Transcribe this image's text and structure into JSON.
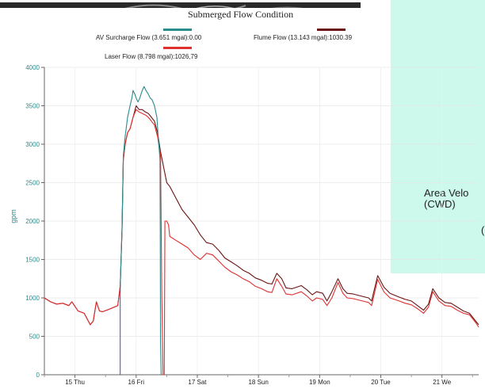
{
  "chart_data": {
    "type": "line",
    "title": "Submerged Flow Condition",
    "ylabel": "gpm",
    "ylim": [
      0,
      4000
    ],
    "yticks": [
      0,
      500,
      1000,
      1500,
      2000,
      2500,
      3000,
      3500,
      4000
    ],
    "xlim": [
      0,
      7.1
    ],
    "xticks": [
      {
        "x": 0.5,
        "label": "15 Thu"
      },
      {
        "x": 1.5,
        "label": "16 Fri"
      },
      {
        "x": 2.5,
        "label": "17 Sat"
      },
      {
        "x": 3.5,
        "label": "18 Sun"
      },
      {
        "x": 4.5,
        "label": "19 Mon"
      },
      {
        "x": 5.5,
        "label": "20 Tue"
      },
      {
        "x": 6.5,
        "label": "21 We"
      }
    ],
    "legend": [
      {
        "label": "AV Surcharge Flow (3.651 mgal):0.00",
        "color": "#2a8c8c"
      },
      {
        "label": "Flume Flow (13.143 mgal):1030.39",
        "color": "#6b1414"
      },
      {
        "label": "Laser Flow (8.798 mgal):1026,79",
        "color": "#e03030"
      }
    ],
    "series": [
      {
        "name": "Flume Flow (13.143 mgal):1030.39",
        "color": "#6b1414",
        "points": [
          [
            0,
            1000
          ],
          [
            0.1,
            950
          ],
          [
            0.2,
            920
          ],
          [
            0.3,
            930
          ],
          [
            0.4,
            900
          ],
          [
            0.45,
            950
          ],
          [
            0.55,
            830
          ],
          [
            0.65,
            800
          ],
          [
            0.75,
            650
          ],
          [
            0.8,
            700
          ],
          [
            0.85,
            950
          ],
          [
            0.9,
            830
          ],
          [
            0.95,
            820
          ],
          [
            1.05,
            850
          ],
          [
            1.2,
            900
          ],
          [
            1.24,
            1150
          ],
          [
            1.27,
            1900
          ],
          [
            1.29,
            2800
          ],
          [
            1.32,
            3000
          ],
          [
            1.36,
            3150
          ],
          [
            1.4,
            3200
          ],
          [
            1.45,
            3350
          ],
          [
            1.5,
            3500
          ],
          [
            1.55,
            3450
          ],
          [
            1.6,
            3450
          ],
          [
            1.65,
            3420
          ],
          [
            1.7,
            3400
          ],
          [
            1.75,
            3350
          ],
          [
            1.8,
            3300
          ],
          [
            1.85,
            3150
          ],
          [
            1.9,
            2900
          ],
          [
            1.95,
            2700
          ],
          [
            2.0,
            2500
          ],
          [
            2.05,
            2450
          ],
          [
            2.15,
            2300
          ],
          [
            2.25,
            2150
          ],
          [
            2.35,
            2050
          ],
          [
            2.45,
            1950
          ],
          [
            2.55,
            1820
          ],
          [
            2.65,
            1720
          ],
          [
            2.75,
            1700
          ],
          [
            2.85,
            1620
          ],
          [
            2.95,
            1520
          ],
          [
            3.05,
            1470
          ],
          [
            3.15,
            1420
          ],
          [
            3.25,
            1360
          ],
          [
            3.35,
            1320
          ],
          [
            3.45,
            1260
          ],
          [
            3.55,
            1230
          ],
          [
            3.65,
            1190
          ],
          [
            3.72,
            1180
          ],
          [
            3.8,
            1320
          ],
          [
            3.88,
            1250
          ],
          [
            3.95,
            1130
          ],
          [
            4.05,
            1120
          ],
          [
            4.2,
            1160
          ],
          [
            4.3,
            1100
          ],
          [
            4.38,
            1040
          ],
          [
            4.45,
            1080
          ],
          [
            4.55,
            1060
          ],
          [
            4.62,
            960
          ],
          [
            4.7,
            1080
          ],
          [
            4.8,
            1250
          ],
          [
            4.88,
            1120
          ],
          [
            4.95,
            1060
          ],
          [
            5.05,
            1050
          ],
          [
            5.2,
            1020
          ],
          [
            5.3,
            1000
          ],
          [
            5.35,
            960
          ],
          [
            5.45,
            1290
          ],
          [
            5.55,
            1140
          ],
          [
            5.65,
            1060
          ],
          [
            5.8,
            1010
          ],
          [
            5.9,
            980
          ],
          [
            6.0,
            960
          ],
          [
            6.1,
            900
          ],
          [
            6.2,
            840
          ],
          [
            6.28,
            920
          ],
          [
            6.35,
            1120
          ],
          [
            6.45,
            1000
          ],
          [
            6.55,
            940
          ],
          [
            6.65,
            930
          ],
          [
            6.75,
            880
          ],
          [
            6.85,
            830
          ],
          [
            6.95,
            800
          ],
          [
            7.05,
            700
          ],
          [
            7.1,
            650
          ]
        ]
      },
      {
        "name": "Laser Flow (8.798 mgal):1026,79",
        "color": "#e03030",
        "points": [
          [
            0,
            1000
          ],
          [
            0.1,
            950
          ],
          [
            0.2,
            920
          ],
          [
            0.3,
            930
          ],
          [
            0.4,
            900
          ],
          [
            0.45,
            950
          ],
          [
            0.55,
            830
          ],
          [
            0.65,
            800
          ],
          [
            0.75,
            650
          ],
          [
            0.8,
            700
          ],
          [
            0.85,
            950
          ],
          [
            0.9,
            830
          ],
          [
            0.95,
            820
          ],
          [
            1.05,
            850
          ],
          [
            1.2,
            900
          ],
          [
            1.24,
            1150
          ],
          [
            1.27,
            1900
          ],
          [
            1.29,
            2800
          ],
          [
            1.32,
            3000
          ],
          [
            1.36,
            3150
          ],
          [
            1.4,
            3200
          ],
          [
            1.45,
            3350
          ],
          [
            1.5,
            3450
          ],
          [
            1.55,
            3420
          ],
          [
            1.6,
            3400
          ],
          [
            1.65,
            3380
          ],
          [
            1.7,
            3350
          ],
          [
            1.75,
            3300
          ],
          [
            1.8,
            3250
          ],
          [
            1.85,
            3100
          ],
          [
            1.9,
            2850
          ],
          [
            1.92,
            1000
          ],
          [
            1.94,
            0
          ],
          [
            1.96,
            0
          ],
          [
            1.97,
            2000
          ],
          [
            2.0,
            2000
          ],
          [
            2.03,
            1950
          ],
          [
            2.05,
            1800
          ],
          [
            2.15,
            1750
          ],
          [
            2.25,
            1700
          ],
          [
            2.35,
            1650
          ],
          [
            2.45,
            1560
          ],
          [
            2.55,
            1500
          ],
          [
            2.65,
            1580
          ],
          [
            2.75,
            1560
          ],
          [
            2.85,
            1480
          ],
          [
            2.95,
            1400
          ],
          [
            3.05,
            1340
          ],
          [
            3.15,
            1300
          ],
          [
            3.25,
            1250
          ],
          [
            3.35,
            1210
          ],
          [
            3.45,
            1150
          ],
          [
            3.55,
            1120
          ],
          [
            3.65,
            1080
          ],
          [
            3.72,
            1070
          ],
          [
            3.8,
            1250
          ],
          [
            3.88,
            1150
          ],
          [
            3.95,
            1050
          ],
          [
            4.05,
            1040
          ],
          [
            4.2,
            1080
          ],
          [
            4.3,
            1020
          ],
          [
            4.38,
            960
          ],
          [
            4.45,
            1000
          ],
          [
            4.55,
            980
          ],
          [
            4.62,
            900
          ],
          [
            4.7,
            1000
          ],
          [
            4.8,
            1200
          ],
          [
            4.88,
            1060
          ],
          [
            4.95,
            1000
          ],
          [
            5.05,
            990
          ],
          [
            5.2,
            960
          ],
          [
            5.3,
            940
          ],
          [
            5.35,
            900
          ],
          [
            5.45,
            1240
          ],
          [
            5.55,
            1080
          ],
          [
            5.65,
            1000
          ],
          [
            5.8,
            960
          ],
          [
            5.9,
            930
          ],
          [
            6.0,
            910
          ],
          [
            6.1,
            860
          ],
          [
            6.2,
            800
          ],
          [
            6.28,
            880
          ],
          [
            6.35,
            1080
          ],
          [
            6.45,
            960
          ],
          [
            6.55,
            900
          ],
          [
            6.65,
            890
          ],
          [
            6.75,
            840
          ],
          [
            6.85,
            800
          ],
          [
            6.95,
            780
          ],
          [
            7.05,
            680
          ],
          [
            7.1,
            620
          ]
        ]
      },
      {
        "name": "AV Surcharge Flow (3.651 mgal):0.00",
        "color": "#2a8c8c",
        "points": [
          [
            1.24,
            1150
          ],
          [
            1.27,
            1900
          ],
          [
            1.29,
            2850
          ],
          [
            1.32,
            3100
          ],
          [
            1.36,
            3350
          ],
          [
            1.4,
            3500
          ],
          [
            1.43,
            3600
          ],
          [
            1.45,
            3700
          ],
          [
            1.48,
            3650
          ],
          [
            1.5,
            3600
          ],
          [
            1.53,
            3550
          ],
          [
            1.56,
            3600
          ],
          [
            1.6,
            3700
          ],
          [
            1.63,
            3750
          ],
          [
            1.66,
            3700
          ],
          [
            1.7,
            3650
          ],
          [
            1.73,
            3600
          ],
          [
            1.76,
            3580
          ],
          [
            1.8,
            3500
          ],
          [
            1.84,
            3350
          ],
          [
            1.87,
            3000
          ],
          [
            1.89,
            2800
          ],
          [
            1.9,
            400
          ],
          [
            1.91,
            0
          ]
        ]
      },
      {
        "name": "",
        "color": "#4444cc",
        "points": [
          [
            1.24,
            0
          ],
          [
            1.24,
            1150
          ]
        ]
      }
    ]
  },
  "callout": {
    "lines": [
      "Area Velo",
      "(CWD)"
    ],
    "mark": "("
  }
}
